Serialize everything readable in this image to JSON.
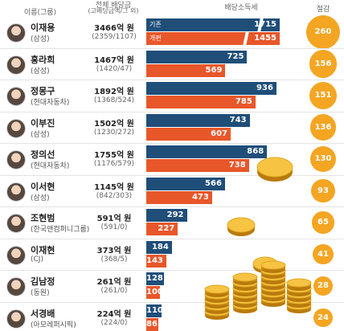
{
  "header": {
    "name_col": "이름(그룹)",
    "total_col": "전체 배당금",
    "total_sub": "(고배당금액/그 외)",
    "tax_col": "배당소득세",
    "saving_col": "절감"
  },
  "legend": {
    "old": "기존",
    "new": "개편"
  },
  "colors": {
    "old": "#1f4e79",
    "new": "#e8572a",
    "saving": "#f4a522"
  },
  "chart_data": {
    "type": "bar",
    "series": [
      {
        "name": "기존",
        "values": [
          1715,
          725,
          936,
          743,
          868,
          566,
          292,
          184,
          128,
          110
        ]
      },
      {
        "name": "개편",
        "values": [
          1455,
          569,
          785,
          607,
          738,
          473,
          227,
          143,
          100,
          86
        ]
      }
    ],
    "savings": [
      260,
      156,
      151,
      136,
      130,
      93,
      65,
      41,
      28,
      24
    ],
    "xlabel": "",
    "ylabel": ""
  },
  "people": [
    {
      "name": "이재용",
      "group": "(삼성)",
      "total": "3466억 원",
      "split": "(2359/1107)"
    },
    {
      "name": "홍라희",
      "group": "(삼성)",
      "total": "1467억 원",
      "split": "(1420/47)"
    },
    {
      "name": "정몽구",
      "group": "(현대자동차)",
      "total": "1892억 원",
      "split": "(1368/524)"
    },
    {
      "name": "이부진",
      "group": "(삼성)",
      "total": "1502억 원",
      "split": "(1230/272)"
    },
    {
      "name": "정의선",
      "group": "(현대자동차)",
      "total": "1755억 원",
      "split": "(1176/579)"
    },
    {
      "name": "이서현",
      "group": "(삼성)",
      "total": "1145억 원",
      "split": "(842/303)"
    },
    {
      "name": "조현범",
      "group": "(한국앤컴퍼니그룹)",
      "total": "591억 원",
      "split": "(591/0)"
    },
    {
      "name": "이재현",
      "group": "(CJ)",
      "total": "373억 원",
      "split": "(368/5)"
    },
    {
      "name": "김남정",
      "group": "(동원)",
      "total": "261억 원",
      "split": "(261/0)"
    },
    {
      "name": "서경배",
      "group": "(아모레퍼시픽)",
      "total": "224억 원",
      "split": "(224/0)"
    }
  ]
}
